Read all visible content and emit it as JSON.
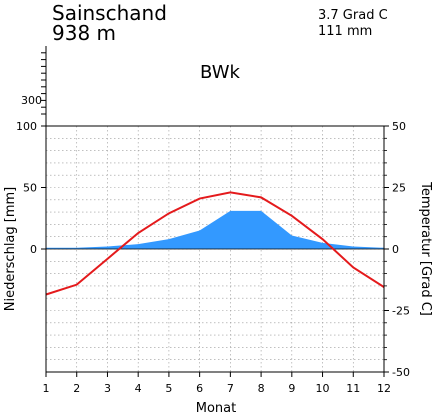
{
  "header": {
    "station": "Sainschand",
    "elevation": "938 m",
    "annual_temperature": "3.7 Grad C",
    "annual_precipitation": "111 mm",
    "climate_class": "BWk"
  },
  "chart_data": {
    "type": "line",
    "title": "",
    "xlabel": "Monat",
    "ylabel_left": "Niederschlag [mm]",
    "ylabel_right": "Temperatur [Grad C]",
    "x": [
      1,
      2,
      3,
      4,
      5,
      6,
      7,
      8,
      9,
      10,
      11,
      12
    ],
    "x_tick_labels": [
      "1",
      "2",
      "3",
      "4",
      "5",
      "6",
      "7",
      "8",
      "9",
      "10",
      "11",
      "12"
    ],
    "xlim": [
      1,
      12
    ],
    "precip_ylim": [
      -100,
      100
    ],
    "precip_ticks": [
      "0",
      "50",
      "100"
    ],
    "precip_upper_tick": "300",
    "temp_ylim": [
      -50,
      50
    ],
    "temp_ticks": [
      "-50",
      "-25",
      "0",
      "25",
      "50"
    ],
    "grid": true,
    "series": [
      {
        "key": "precipitation",
        "render": "area",
        "color": "#3399ff",
        "values": [
          1,
          1,
          2,
          4,
          8,
          15,
          31,
          31,
          11,
          5,
          2,
          1
        ]
      },
      {
        "key": "temperature",
        "render": "line",
        "color": "#e41a1c",
        "values": [
          -18.5,
          -14.5,
          -4,
          6.5,
          14.5,
          20.5,
          23,
          21,
          13.5,
          4,
          -7.5,
          -15.5
        ]
      }
    ]
  }
}
